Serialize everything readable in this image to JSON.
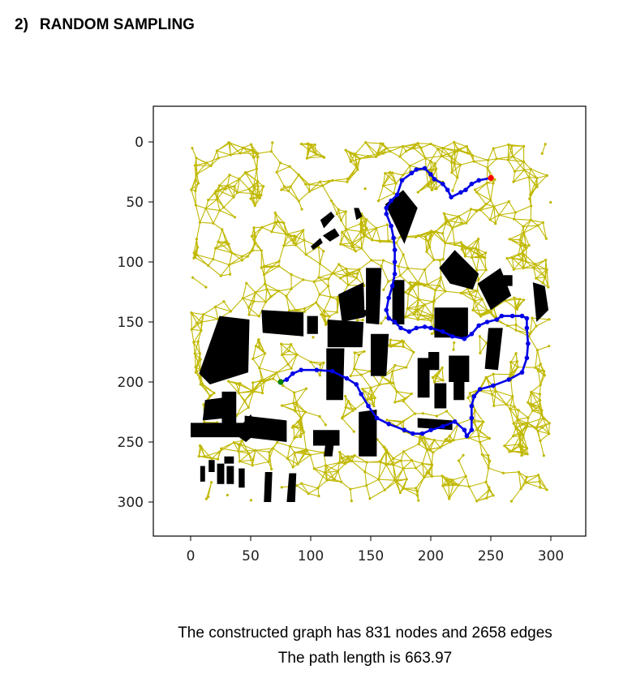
{
  "heading": {
    "number": "2)",
    "title": "RANDOM SAMPLING"
  },
  "captions": {
    "line1": "The constructed graph has 831 nodes and 2658 edges",
    "line2": "The path length is 663.97"
  },
  "colors": {
    "graph": "#c0b800",
    "path": "#0000e6",
    "obstacles": "#000000",
    "start": "#008000",
    "goal": "#ff0000"
  },
  "chart_data": {
    "type": "scatter",
    "x_ticks": [
      0,
      50,
      100,
      150,
      200,
      250,
      300
    ],
    "y_ticks": [
      0,
      50,
      100,
      150,
      200,
      250,
      300
    ],
    "xlim": [
      -30,
      330
    ],
    "ylim": [
      330,
      -30
    ],
    "y_inverted": true,
    "grid": false,
    "graph": {
      "nodes": 831,
      "edges": 2658
    },
    "start": [
      75,
      200
    ],
    "goal": [
      250,
      30
    ],
    "path": [
      [
        75,
        200
      ],
      [
        80,
        198
      ],
      [
        85,
        193
      ],
      [
        92,
        190
      ],
      [
        105,
        190
      ],
      [
        118,
        191
      ],
      [
        130,
        197
      ],
      [
        138,
        202
      ],
      [
        142,
        210
      ],
      [
        148,
        220
      ],
      [
        155,
        230
      ],
      [
        165,
        235
      ],
      [
        178,
        240
      ],
      [
        185,
        243
      ],
      [
        193,
        243
      ],
      [
        200,
        240
      ],
      [
        210,
        237
      ],
      [
        220,
        233
      ],
      [
        228,
        240
      ],
      [
        230,
        245
      ],
      [
        234,
        240
      ],
      [
        234,
        230
      ],
      [
        234,
        220
      ],
      [
        236,
        212
      ],
      [
        241,
        206
      ],
      [
        252,
        203
      ],
      [
        265,
        198
      ],
      [
        276,
        192
      ],
      [
        280,
        180
      ],
      [
        281,
        168
      ],
      [
        280,
        155
      ],
      [
        280,
        147
      ],
      [
        276,
        145
      ],
      [
        268,
        145
      ],
      [
        259,
        145
      ],
      [
        255,
        148
      ],
      [
        247,
        150
      ],
      [
        240,
        153
      ],
      [
        234,
        160
      ],
      [
        228,
        164
      ],
      [
        218,
        162
      ],
      [
        210,
        158
      ],
      [
        200,
        155
      ],
      [
        195,
        154
      ],
      [
        188,
        155
      ],
      [
        182,
        158
      ],
      [
        175,
        155
      ],
      [
        170,
        150
      ],
      [
        165,
        147
      ],
      [
        163,
        140
      ],
      [
        165,
        130
      ],
      [
        168,
        120
      ],
      [
        170,
        110
      ],
      [
        170,
        100
      ],
      [
        170,
        90
      ],
      [
        169,
        80
      ],
      [
        167,
        70
      ],
      [
        163,
        60
      ],
      [
        163,
        55
      ],
      [
        167,
        49
      ],
      [
        172,
        44
      ],
      [
        176,
        32
      ],
      [
        184,
        26
      ],
      [
        188,
        23
      ],
      [
        195,
        22
      ],
      [
        200,
        27
      ],
      [
        203,
        31
      ],
      [
        210,
        35
      ],
      [
        214,
        40
      ],
      [
        217,
        46
      ],
      [
        225,
        42
      ],
      [
        229,
        40
      ],
      [
        234,
        35
      ],
      [
        240,
        32
      ],
      [
        250,
        30
      ]
    ],
    "obstacles": [
      [
        [
          7,
          193
        ],
        [
          24,
          145
        ],
        [
          49,
          148
        ],
        [
          48,
          192
        ],
        [
          16,
          202
        ]
      ],
      [
        [
          59,
          140
        ],
        [
          94,
          142
        ],
        [
          94,
          162
        ],
        [
          60,
          159
        ]
      ],
      [
        [
          97,
          145
        ],
        [
          106,
          145
        ],
        [
          106,
          160
        ],
        [
          97,
          160
        ]
      ],
      [
        [
          114,
          148
        ],
        [
          144,
          150
        ],
        [
          143,
          171
        ],
        [
          114,
          171
        ]
      ],
      [
        [
          123,
          127
        ],
        [
          144,
          117
        ],
        [
          145,
          146
        ],
        [
          126,
          150
        ]
      ],
      [
        [
          146,
          105
        ],
        [
          159,
          105
        ],
        [
          157,
          152
        ],
        [
          146,
          151
        ]
      ],
      [
        [
          168,
          115
        ],
        [
          178,
          115
        ],
        [
          178,
          152
        ],
        [
          168,
          152
        ]
      ],
      [
        [
          150,
          160
        ],
        [
          165,
          160
        ],
        [
          163,
          195
        ],
        [
          150,
          195
        ]
      ],
      [
        [
          113,
          172
        ],
        [
          128,
          172
        ],
        [
          127,
          215
        ],
        [
          113,
          215
        ]
      ],
      [
        [
          134,
          140
        ],
        [
          152,
          140
        ],
        [
          152,
          145
        ],
        [
          134,
          145
        ]
      ],
      [
        [
          162,
          52
        ],
        [
          177,
          40
        ],
        [
          189,
          55
        ],
        [
          178,
          85
        ]
      ],
      [
        [
          203,
          138
        ],
        [
          231,
          138
        ],
        [
          231,
          163
        ],
        [
          203,
          163
        ]
      ],
      [
        [
          215,
          178
        ],
        [
          232,
          178
        ],
        [
          232,
          200
        ],
        [
          215,
          200
        ]
      ],
      [
        [
          219,
          182
        ],
        [
          228,
          182
        ],
        [
          228,
          215
        ],
        [
          219,
          215
        ]
      ],
      [
        [
          203,
          201
        ],
        [
          213,
          201
        ],
        [
          213,
          222
        ],
        [
          203,
          222
        ]
      ],
      [
        [
          189,
          180
        ],
        [
          199,
          180
        ],
        [
          199,
          213
        ],
        [
          189,
          213
        ]
      ],
      [
        [
          189,
          230
        ],
        [
          218,
          232
        ],
        [
          218,
          240
        ],
        [
          189,
          238
        ]
      ],
      [
        [
          198,
          175
        ],
        [
          207,
          175
        ],
        [
          207,
          190
        ],
        [
          198,
          190
        ]
      ],
      [
        [
          207,
          105
        ],
        [
          220,
          90
        ],
        [
          240,
          110
        ],
        [
          235,
          123
        ],
        [
          216,
          118
        ]
      ],
      [
        [
          239,
          118
        ],
        [
          258,
          105
        ],
        [
          267,
          128
        ],
        [
          250,
          140
        ]
      ],
      [
        [
          257,
          111
        ],
        [
          268,
          111
        ],
        [
          268,
          120
        ],
        [
          257,
          120
        ]
      ],
      [
        [
          285,
          117
        ],
        [
          295,
          120
        ],
        [
          298,
          140
        ],
        [
          288,
          150
        ]
      ],
      [
        [
          248,
          155
        ],
        [
          260,
          155
        ],
        [
          256,
          190
        ],
        [
          245,
          189
        ]
      ],
      [
        [
          140,
          225
        ],
        [
          155,
          223
        ],
        [
          155,
          262
        ],
        [
          140,
          262
        ]
      ],
      [
        [
          102,
          240
        ],
        [
          124,
          240
        ],
        [
          124,
          253
        ],
        [
          102,
          253
        ]
      ],
      [
        [
          113,
          245
        ],
        [
          120,
          245
        ],
        [
          118,
          262
        ],
        [
          111,
          262
        ]
      ],
      [
        [
          45,
          228
        ],
        [
          80,
          232
        ],
        [
          80,
          250
        ],
        [
          45,
          246
        ]
      ],
      [
        [
          0,
          234
        ],
        [
          45,
          234
        ],
        [
          45,
          246
        ],
        [
          0,
          246
        ]
      ],
      [
        [
          12,
          215
        ],
        [
          27,
          213
        ],
        [
          30,
          230
        ],
        [
          10,
          232
        ]
      ],
      [
        [
          26,
          208
        ],
        [
          38,
          208
        ],
        [
          38,
          240
        ],
        [
          26,
          240
        ]
      ],
      [
        [
          36,
          243
        ],
        [
          50,
          227
        ],
        [
          58,
          240
        ],
        [
          46,
          250
        ]
      ],
      [
        [
          108,
          65
        ],
        [
          117,
          58
        ],
        [
          120,
          62
        ],
        [
          111,
          72
        ]
      ],
      [
        [
          110,
          78
        ],
        [
          120,
          72
        ],
        [
          124,
          78
        ],
        [
          116,
          83
        ]
      ],
      [
        [
          100,
          87
        ],
        [
          108,
          80
        ],
        [
          110,
          84
        ],
        [
          102,
          90
        ]
      ],
      [
        [
          136,
          55
        ],
        [
          140,
          55
        ],
        [
          143,
          62
        ],
        [
          138,
          65
        ]
      ],
      [
        [
          8,
          270
        ],
        [
          12,
          270
        ],
        [
          12,
          283
        ],
        [
          8,
          283
        ]
      ],
      [
        [
          15,
          265
        ],
        [
          20,
          265
        ],
        [
          20,
          275
        ],
        [
          15,
          275
        ]
      ],
      [
        [
          22,
          268
        ],
        [
          28,
          268
        ],
        [
          28,
          285
        ],
        [
          22,
          285
        ]
      ],
      [
        [
          30,
          270
        ],
        [
          36,
          270
        ],
        [
          36,
          285
        ],
        [
          30,
          285
        ]
      ],
      [
        [
          40,
          272
        ],
        [
          45,
          272
        ],
        [
          45,
          288
        ],
        [
          40,
          288
        ]
      ],
      [
        [
          62,
          275
        ],
        [
          68,
          275
        ],
        [
          67,
          300
        ],
        [
          61,
          300
        ]
      ],
      [
        [
          82,
          276
        ],
        [
          88,
          276
        ],
        [
          87,
          300
        ],
        [
          80,
          300
        ]
      ],
      [
        [
          28,
          262
        ],
        [
          36,
          262
        ],
        [
          36,
          268
        ],
        [
          28,
          268
        ]
      ]
    ]
  }
}
